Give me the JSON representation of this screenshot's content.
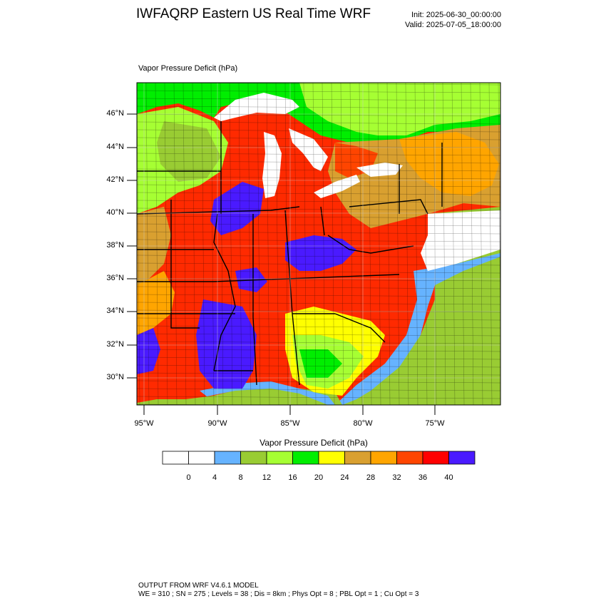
{
  "header": {
    "title": "IWFAQRP Eastern US Real Time WRF",
    "init": "Init: 2025-06-30_00:00:00",
    "valid": "Valid: 2025-07-05_18:00:00"
  },
  "map": {
    "field_label": "Vapor Pressure Deficit   (hPa)",
    "lat_labels": [
      "46°N",
      "44°N",
      "42°N",
      "40°N",
      "38°N",
      "36°N",
      "34°N",
      "32°N",
      "30°N"
    ],
    "lon_labels": [
      "95°W",
      "90°W",
      "85°W",
      "80°W",
      "75°W"
    ]
  },
  "colorbar": {
    "title": "Vapor Pressure Deficit  (hPa)",
    "levels": [
      "0",
      "4",
      "8",
      "12",
      "16",
      "20",
      "24",
      "28",
      "32",
      "36",
      "40"
    ],
    "colors": [
      "#ffffff",
      "#ffffff",
      "#66b3ff",
      "#99cc33",
      "#a6ff33",
      "#00ee00",
      "#ffff00",
      "#d9a030",
      "#ffa500",
      "#ff4500",
      "#ff0000",
      "#4a1aff"
    ]
  },
  "footer": {
    "line1": "OUTPUT FROM WRF V4.6.1 MODEL",
    "line2": "WE = 310 ; SN = 275 ; Levels = 38 ; Dis = 8km ; Phys Opt = 8 ; PBL Opt = 1 ; Cu Opt = 3"
  }
}
